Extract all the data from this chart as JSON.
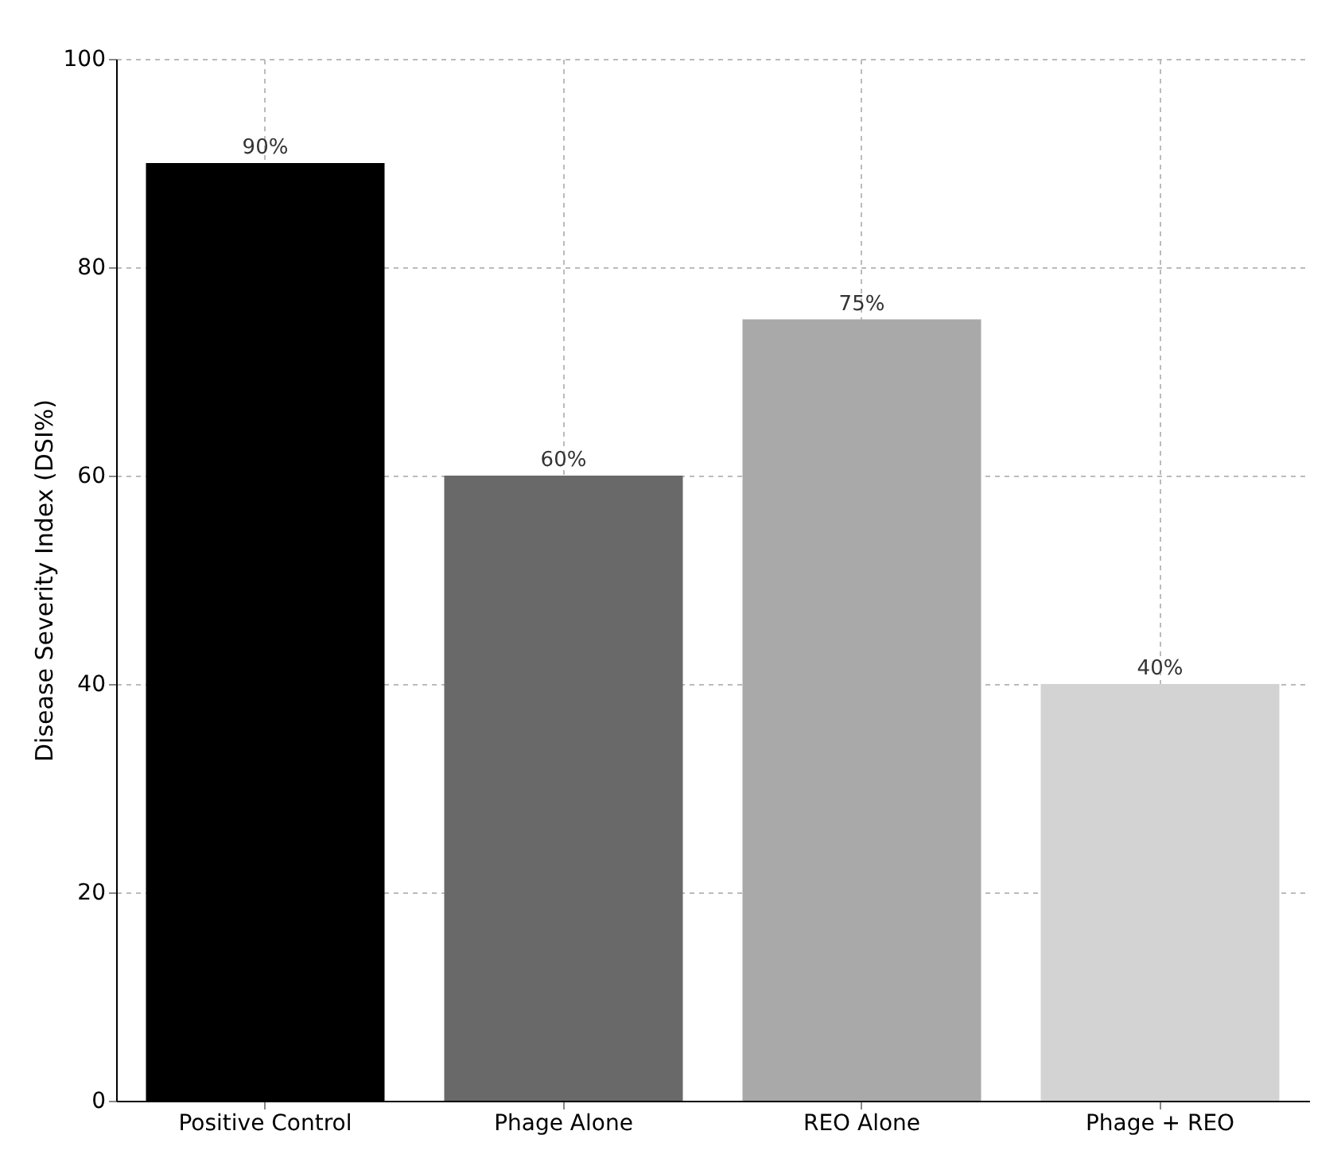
{
  "chart_data": {
    "type": "bar",
    "ylabel": "Disease Severity Index (DSI%)",
    "categories": [
      "Positive Control",
      "Phage Alone",
      "REO Alone",
      "Phage + REO"
    ],
    "values": [
      90,
      60,
      75,
      40
    ],
    "colors": [
      "#000000",
      "#696969",
      "#a9a9a9",
      "#d3d3d3"
    ],
    "value_labels": [
      "90%",
      "60%",
      "75%",
      "40%"
    ],
    "ylim": [
      0,
      100
    ],
    "yticks": [
      0,
      20,
      40,
      60,
      80,
      100
    ],
    "grid": true
  }
}
